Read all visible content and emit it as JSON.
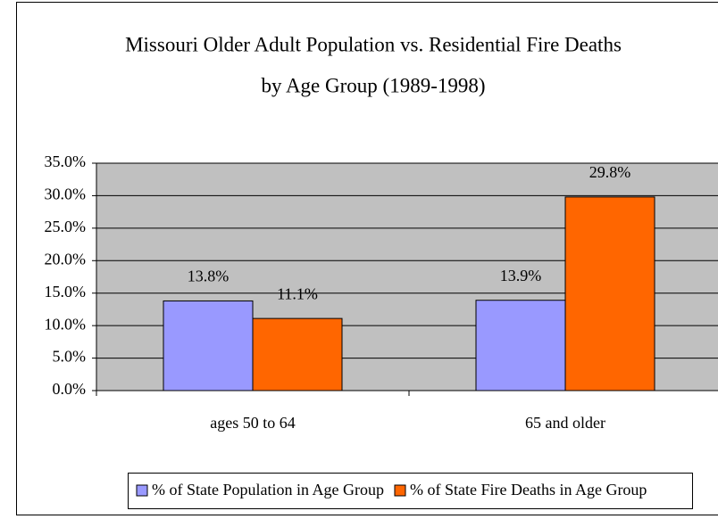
{
  "chart_data": {
    "type": "bar",
    "title": [
      "Missouri Older Adult Population vs. Residential Fire Deaths",
      "by Age Group (1989-1998)"
    ],
    "categories": [
      "ages 50 to 64",
      "65 and older"
    ],
    "series": [
      {
        "name": "% of State Population in Age Group",
        "color": "#9999ff",
        "values": [
          13.8,
          13.9
        ],
        "value_labels": [
          "13.8%",
          "13.9%"
        ]
      },
      {
        "name": "% of State Fire Deaths in Age Group",
        "color": "#ff6600",
        "values": [
          11.1,
          29.8
        ],
        "value_labels": [
          "11.1%",
          "29.8%"
        ]
      }
    ],
    "ylim": [
      0,
      35
    ],
    "yticks": [
      {
        "value": 0,
        "label": "0.0%"
      },
      {
        "value": 5,
        "label": "5.0%"
      },
      {
        "value": 10,
        "label": "10.0%"
      },
      {
        "value": 15,
        "label": "15.0%"
      },
      {
        "value": 20,
        "label": "20.0%"
      },
      {
        "value": 25,
        "label": "25.0%"
      },
      {
        "value": 30,
        "label": "30.0%"
      },
      {
        "value": 35,
        "label": "35.0%"
      }
    ],
    "grid": true,
    "legend": "bottom"
  }
}
